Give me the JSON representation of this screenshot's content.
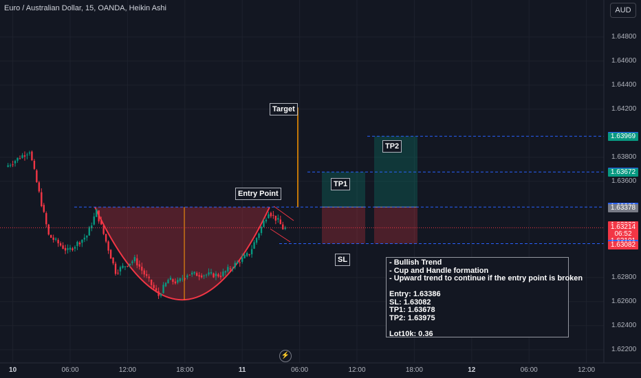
{
  "header": {
    "title": "Euro / Australian Dollar, 15, OANDA, Heikin Ashi"
  },
  "currency_button": {
    "label": "AUD"
  },
  "annotations": {
    "target": "Target",
    "entry_point": "Entry Point",
    "tp1": "TP1",
    "tp2": "TP2",
    "sl": "SL"
  },
  "note_lines": [
    "- Bullish Trend",
    "- Cup and Handle formation",
    "- Upward trend to continue if the entry point is broken",
    "",
    "Entry: 1.63386",
    "SL: 1.63082",
    "TP1: 1.63678",
    "TP2: 1.63975",
    "",
    "Lot10k: 0.36"
  ],
  "price_tags": [
    {
      "label": "1.63975",
      "price": 1.63975,
      "color": "#2962ff"
    },
    {
      "label": "1.63969",
      "price": 1.63969,
      "color": "#089981"
    },
    {
      "label": "1.63678",
      "price": 1.63678,
      "color": "#2962ff"
    },
    {
      "label": "1.63672",
      "price": 1.63672,
      "color": "#089981"
    },
    {
      "label": "1.63388",
      "price": 1.63388,
      "color": "#787b86"
    },
    {
      "label": "1.63386",
      "price": 1.63386,
      "color": "#2962ff"
    },
    {
      "label": "1.63378",
      "price": 1.63378,
      "color": "#787b86"
    },
    {
      "label": "1.63233",
      "price": 1.63233,
      "color": "#f23645"
    },
    {
      "label": "1.63214",
      "price": 1.63214,
      "color": "#f23645"
    },
    {
      "label": "06:52",
      "price": 1.63158,
      "color": "#f23645"
    },
    {
      "label": "1.63101",
      "price": 1.63101,
      "color": "#f23645"
    },
    {
      "label": "1.63082",
      "price": 1.63082,
      "color": "#2962ff"
    },
    {
      "label": "1.63082",
      "price": 1.630675,
      "color": "#f23645"
    }
  ],
  "chart_data": {
    "type": "candlestick",
    "symbol": "EURAUD",
    "interval": "15",
    "y_ticks": [
      1.648,
      1.646,
      1.644,
      1.642,
      1.638,
      1.636,
      1.628,
      1.626,
      1.624,
      1.622
    ],
    "y_tick_labels": [
      "1.64800",
      "1.64600",
      "1.64400",
      "1.64200",
      "1.63800",
      "1.63600",
      "1.62800",
      "1.62600",
      "1.62400",
      "1.62200"
    ],
    "ylim": [
      1.621,
      1.6494
    ],
    "x_ticks": [
      "10",
      "06:00",
      "12:00",
      "18:00",
      "11",
      "06:00",
      "12:00",
      "18:00",
      "12",
      "06:00",
      "12:00"
    ],
    "current_price": 1.63214,
    "countdown": "06:52",
    "levels": {
      "entry": 1.63386,
      "stop_loss": 1.63082,
      "tp1": 1.63678,
      "tp2": 1.63975
    },
    "target_projection": {
      "from": 1.63386,
      "to": 1.64214
    },
    "cup_depth": {
      "top": 1.63386,
      "bottom": 1.62615
    },
    "key_prices": [
      {
        "x": "09 23:30",
        "price": 1.6372
      },
      {
        "x": "10 02:00",
        "price": 1.63855
      },
      {
        "x": "10 04:00",
        "price": 1.6315
      },
      {
        "x": "10 06:00",
        "price": 1.6302
      },
      {
        "x": "10 08:00",
        "price": 1.6315
      },
      {
        "x": "10 09:00",
        "price": 1.6335
      },
      {
        "x": "10 11:00",
        "price": 1.6285
      },
      {
        "x": "10 13:00",
        "price": 1.6295
      },
      {
        "x": "10 15:30",
        "price": 1.6265
      },
      {
        "x": "10 16:30",
        "price": 1.6278
      },
      {
        "x": "10 17:30",
        "price": 1.6276
      },
      {
        "x": "10 18:30",
        "price": 1.6283
      },
      {
        "x": "10 22:00",
        "price": 1.6282
      },
      {
        "x": "11 01:00",
        "price": 1.63
      },
      {
        "x": "11 03:00",
        "price": 1.6335
      },
      {
        "x": "11 04:00",
        "price": 1.6327
      },
      {
        "x": "11 04:30",
        "price": 1.6321
      }
    ]
  }
}
